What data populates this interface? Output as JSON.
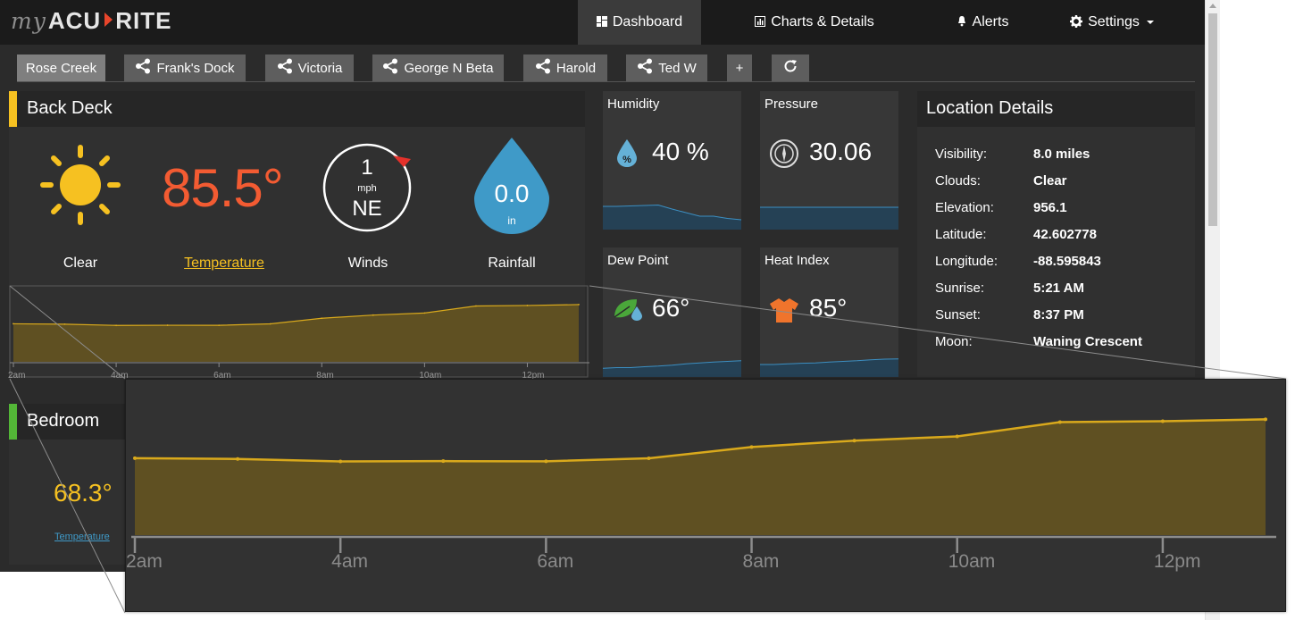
{
  "app": {
    "logo_prefix": "my",
    "logo_brand_left": "ACU",
    "logo_brand_right": "RITE"
  },
  "nav": {
    "items": [
      {
        "label": "Dashboard",
        "icon": "dashboard-icon",
        "active": true
      },
      {
        "label": "Charts & Details",
        "icon": "bar-chart-icon",
        "active": false
      },
      {
        "label": "Alerts",
        "icon": "bell-icon",
        "active": false
      },
      {
        "label": "Settings",
        "icon": "gear-icon",
        "active": false
      }
    ]
  },
  "tabs": {
    "items": [
      {
        "label": "Rose Creek",
        "shared": false,
        "active": true
      },
      {
        "label": "Frank's Dock",
        "shared": true
      },
      {
        "label": "Victoria",
        "shared": true
      },
      {
        "label": "George N Beta",
        "shared": true
      },
      {
        "label": "Harold",
        "shared": true
      },
      {
        "label": "Ted W",
        "shared": true
      }
    ],
    "add_label": "+",
    "refresh_icon": "refresh-icon"
  },
  "back_deck": {
    "title": "Back Deck",
    "accent_color": "#f6c121",
    "condition": "Clear",
    "condition_icon": "sun-icon",
    "temperature": "85.5°",
    "temperature_label": "Temperature",
    "wind_speed": "1",
    "wind_unit": "mph",
    "wind_dir": "NE",
    "wind_label": "Winds",
    "rainfall": "0.0",
    "rain_unit": "in",
    "rain_label": "Rainfall"
  },
  "cards": {
    "humidity": {
      "label": "Humidity",
      "value": "40 %",
      "icon": "humidity-drop-icon"
    },
    "pressure": {
      "label": "Pressure",
      "value": "30.06",
      "icon": "barometer-icon"
    },
    "dew_point": {
      "label": "Dew Point",
      "value": "66°",
      "icon": "leaf-drop-icon"
    },
    "heat_index": {
      "label": "Heat Index",
      "value": "85°",
      "icon": "shirt-icon"
    }
  },
  "location": {
    "title": "Location Details",
    "rows": [
      {
        "key": "Visibility:",
        "value": "8.0 miles"
      },
      {
        "key": "Clouds:",
        "value": "Clear"
      },
      {
        "key": "Elevation:",
        "value": "956.1"
      },
      {
        "key": "Latitude:",
        "value": "42.602778"
      },
      {
        "key": "Longitude:",
        "value": "-88.595843"
      },
      {
        "key": "Sunrise:",
        "value": "5:21 AM"
      },
      {
        "key": "Sunset:",
        "value": "8:37 PM"
      },
      {
        "key": "Moon:",
        "value": "Waning Crescent"
      }
    ]
  },
  "bedroom": {
    "title": "Bedroom",
    "accent_color": "#53b637",
    "temperature": "68.3°",
    "temperature_label": "Temperature"
  },
  "colors": {
    "temp_fill": "#5f5022",
    "temp_line": "#d9a91c",
    "spark_fill": "#254155",
    "spark_line": "#3c8fc2"
  },
  "chart_data": {
    "type": "area",
    "title": "",
    "xlabel": "",
    "ylabel": "",
    "x_ticks": [
      "2am",
      "4am",
      "6am",
      "8am",
      "10am",
      "12pm"
    ],
    "x": [
      2,
      3,
      4,
      5,
      6,
      7,
      8,
      9,
      10,
      11,
      12,
      13
    ],
    "xlim": [
      2,
      13
    ],
    "ylim": [
      0,
      100
    ],
    "values": [
      49.5,
      49.0,
      47.4,
      47.6,
      47.5,
      49.4,
      56.7,
      60.8,
      63.5,
      72.7,
      73.3,
      74.5
    ],
    "grid": false,
    "legend": "none"
  },
  "sparklines": {
    "humidity": [
      52,
      52,
      53,
      54,
      55,
      46,
      38,
      30,
      30,
      25,
      22
    ],
    "pressure": [
      50,
      50,
      50,
      50,
      50,
      50,
      50,
      50,
      50,
      50,
      50
    ],
    "dew_point": [
      28,
      30,
      30,
      33,
      35,
      38,
      42,
      45,
      48,
      50,
      52
    ],
    "heat_index": [
      40,
      40,
      42,
      44,
      45,
      48,
      50,
      52,
      55,
      57,
      58
    ]
  }
}
